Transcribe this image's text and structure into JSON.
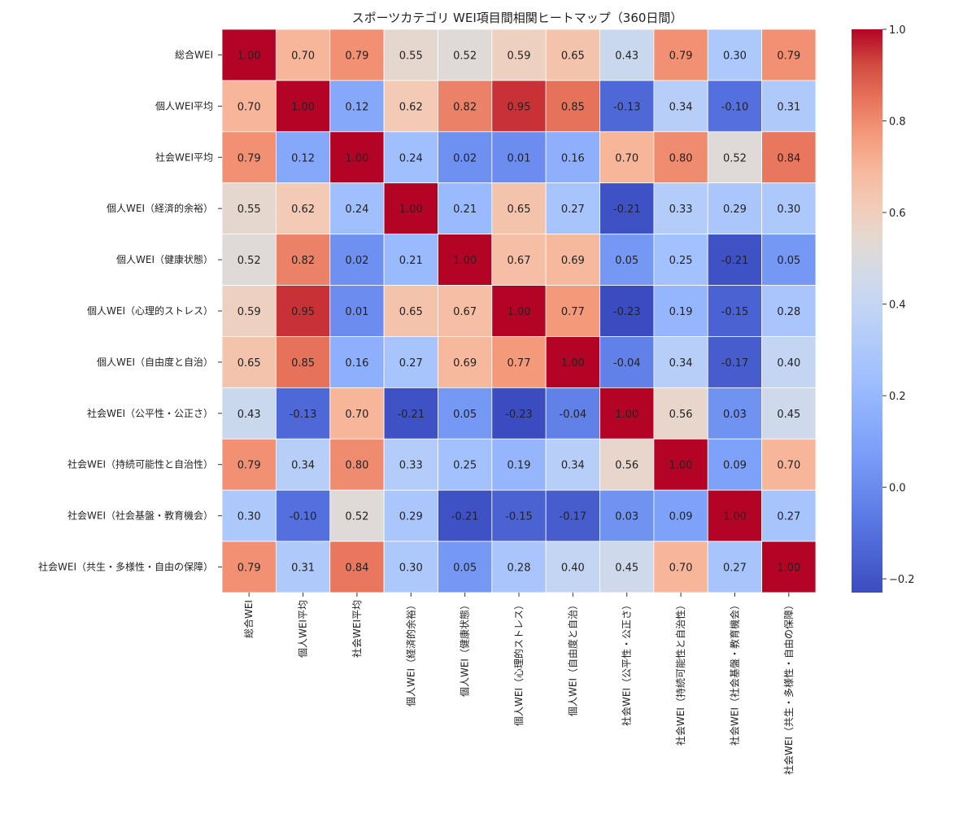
{
  "chart_data": {
    "type": "heatmap",
    "title": "スポーツカテゴリ WEI項目間相関ヒートマップ（360日間）",
    "labels": [
      "総合WEI",
      "個人WEI平均",
      "社会WEI平均",
      "個人WEI（経済的余裕）",
      "個人WEI（健康状態）",
      "個人WEI（心理的ストレス）",
      "個人WEI（自由度と自治）",
      "社会WEI（公平性・公正さ）",
      "社会WEI（持続可能性と自治性）",
      "社会WEI（社会基盤・教育機会）",
      "社会WEI（共生・多様性・自由の保障）"
    ],
    "matrix": [
      [
        1.0,
        0.7,
        0.79,
        0.55,
        0.52,
        0.59,
        0.65,
        0.43,
        0.79,
        0.3,
        0.79
      ],
      [
        0.7,
        1.0,
        0.12,
        0.62,
        0.82,
        0.95,
        0.85,
        -0.13,
        0.34,
        -0.1,
        0.31
      ],
      [
        0.79,
        0.12,
        1.0,
        0.24,
        0.02,
        0.01,
        0.16,
        0.7,
        0.8,
        0.52,
        0.84
      ],
      [
        0.55,
        0.62,
        0.24,
        1.0,
        0.21,
        0.65,
        0.27,
        -0.21,
        0.33,
        0.29,
        0.3
      ],
      [
        0.52,
        0.82,
        0.02,
        0.21,
        1.0,
        0.67,
        0.69,
        0.05,
        0.25,
        -0.21,
        0.05
      ],
      [
        0.59,
        0.95,
        0.01,
        0.65,
        0.67,
        1.0,
        0.77,
        -0.23,
        0.19,
        -0.15,
        0.28
      ],
      [
        0.65,
        0.85,
        0.16,
        0.27,
        0.69,
        0.77,
        1.0,
        -0.04,
        0.34,
        -0.17,
        0.4
      ],
      [
        0.43,
        -0.13,
        0.7,
        -0.21,
        0.05,
        -0.23,
        -0.04,
        1.0,
        0.56,
        0.03,
        0.45
      ],
      [
        0.79,
        0.34,
        0.8,
        0.33,
        0.25,
        0.19,
        0.34,
        0.56,
        1.0,
        0.09,
        0.7
      ],
      [
        0.3,
        -0.1,
        0.52,
        0.29,
        -0.21,
        -0.15,
        -0.17,
        0.03,
        0.09,
        1.0,
        0.27
      ],
      [
        0.79,
        0.31,
        0.84,
        0.3,
        0.05,
        0.28,
        0.4,
        0.45,
        0.7,
        0.27,
        1.0
      ]
    ],
    "colormap": "coolwarm",
    "vmin": -0.23,
    "vmax": 1.0,
    "colorbar_ticks": [
      1.0,
      0.8,
      0.6,
      0.4,
      0.2,
      0.0,
      -0.2
    ],
    "colorbar_tick_labels": [
      "1.0",
      "0.8",
      "0.6",
      "0.4",
      "0.2",
      "0.0",
      "−0.2"
    ],
    "annotation_format": "0.00"
  }
}
